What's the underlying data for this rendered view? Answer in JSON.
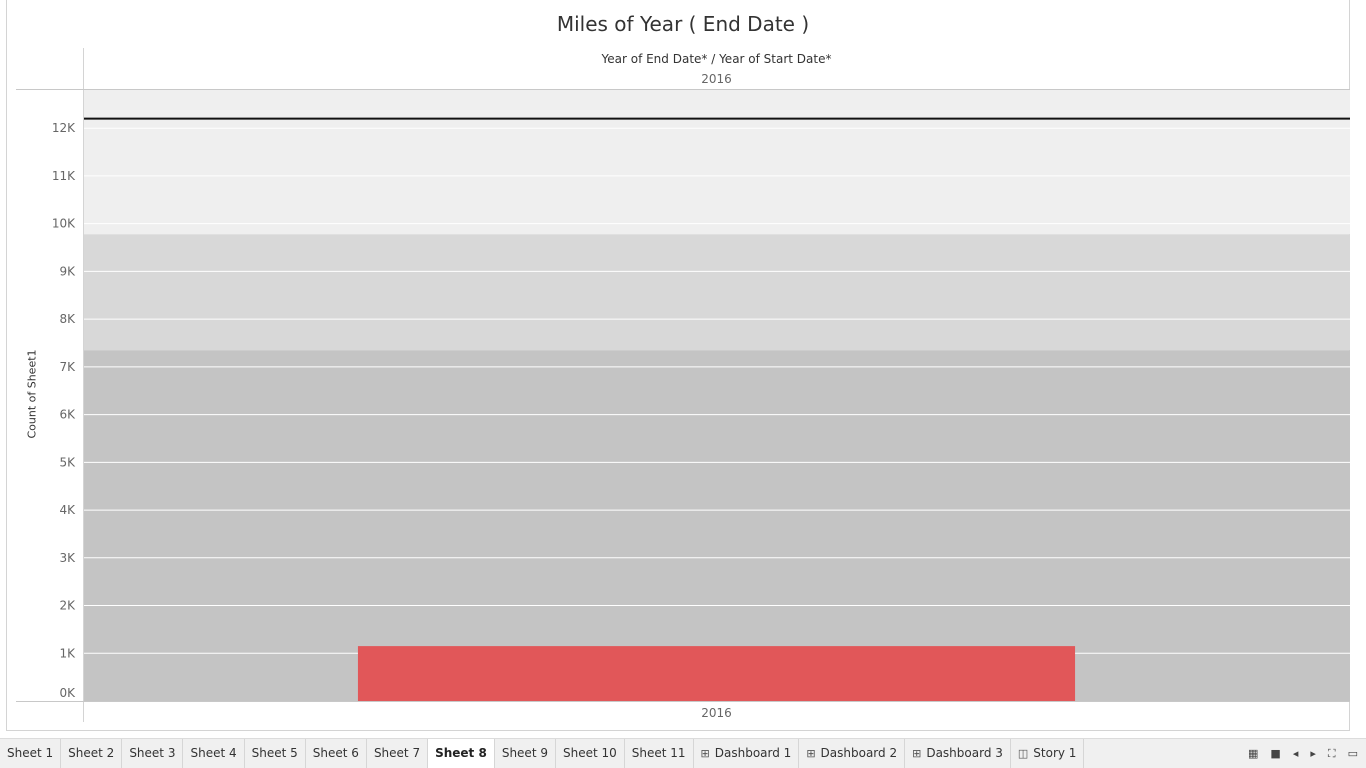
{
  "chart": {
    "title": "Miles of Year ( End Date )",
    "header_fields": "Year of End Date*  /  Year of Start Date*",
    "column_header": "2016"
  },
  "chart_data": {
    "type": "bar",
    "title": "Miles of Year ( End Date )",
    "xlabel": "",
    "ylabel": "Count of Sheet1",
    "categories": [
      "2016"
    ],
    "values": [
      1150
    ],
    "ylim": [
      0,
      12800
    ],
    "yticks": [
      "0K",
      "1K",
      "2K",
      "3K",
      "4K",
      "5K",
      "6K",
      "7K",
      "8K",
      "9K",
      "10K",
      "11K",
      "12K"
    ],
    "reference_line": 12200,
    "bands": [
      {
        "from": 0,
        "to": 7350,
        "color": "#c4c4c4"
      },
      {
        "from": 7350,
        "to": 9780,
        "color": "#d8d8d8"
      },
      {
        "from": 9780,
        "to": 12800,
        "color": "#efefef"
      }
    ],
    "bar_color": "#e15759",
    "grid": true
  },
  "tabs": [
    {
      "label": "Sheet 1",
      "icon": "",
      "active": false
    },
    {
      "label": "Sheet 2",
      "icon": "",
      "active": false
    },
    {
      "label": "Sheet 3",
      "icon": "",
      "active": false
    },
    {
      "label": "Sheet 4",
      "icon": "",
      "active": false
    },
    {
      "label": "Sheet 5",
      "icon": "",
      "active": false
    },
    {
      "label": "Sheet 6",
      "icon": "",
      "active": false
    },
    {
      "label": "Sheet 7",
      "icon": "",
      "active": false
    },
    {
      "label": "Sheet 8",
      "icon": "",
      "active": true
    },
    {
      "label": "Sheet 9",
      "icon": "",
      "active": false
    },
    {
      "label": "Sheet 10",
      "icon": "",
      "active": false
    },
    {
      "label": "Sheet 11",
      "icon": "",
      "active": false
    },
    {
      "label": "Dashboard 1",
      "icon": "dashboard-icon",
      "active": false
    },
    {
      "label": "Dashboard 2",
      "icon": "dashboard-icon",
      "active": false
    },
    {
      "label": "Dashboard 3",
      "icon": "dashboard-icon",
      "active": false
    },
    {
      "label": "Story 1",
      "icon": "story-icon",
      "active": false
    }
  ],
  "controls": [
    {
      "name": "show-filmstrip-icon",
      "glyph": "▦"
    },
    {
      "name": "show-tabs-icon",
      "glyph": "■"
    },
    {
      "name": "prev-sheet-icon",
      "glyph": "◂"
    },
    {
      "name": "next-sheet-icon",
      "glyph": "▸"
    },
    {
      "name": "fullscreen-icon",
      "glyph": "⛶"
    },
    {
      "name": "presentation-mode-icon",
      "glyph": "▭"
    }
  ]
}
